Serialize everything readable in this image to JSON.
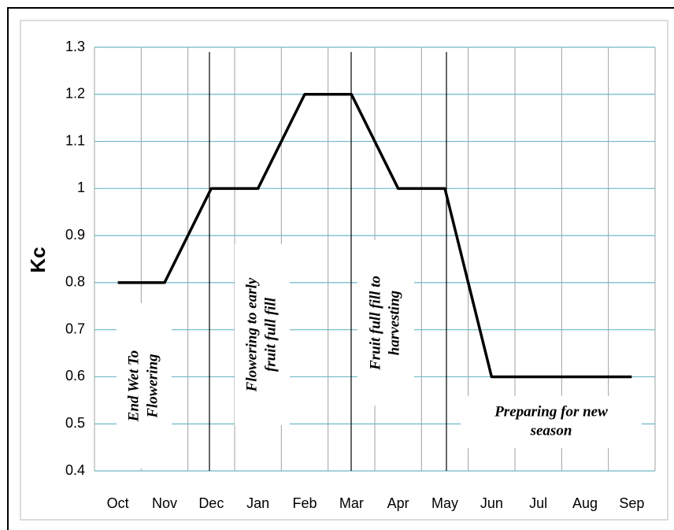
{
  "chart_data": {
    "type": "line",
    "y_label": "Kc",
    "categories": [
      "Oct",
      "Nov",
      "Dec",
      "Jan",
      "Feb",
      "Mar",
      "Apr",
      "May",
      "Jun",
      "Jul",
      "Aug",
      "Sep"
    ],
    "values": [
      0.8,
      0.8,
      1.0,
      1.0,
      1.2,
      1.2,
      1.0,
      1.0,
      0.6,
      0.6,
      0.6,
      0.6
    ],
    "color": "#000000",
    "ylim": [
      0.4,
      1.3
    ],
    "yticks": [
      0.4,
      0.5,
      0.6,
      0.7,
      0.8,
      0.9,
      1,
      1.1,
      1.2,
      1.3
    ],
    "grid": true,
    "annotations": [
      {
        "lines": [
          "End Wet To",
          "Flowering"
        ]
      },
      {
        "lines": [
          "Flowering to early",
          "fruit full fill"
        ]
      },
      {
        "lines": [
          "Fruit full fill to",
          "harvesting"
        ]
      },
      {
        "lines": [
          "Preparing for new",
          "season"
        ]
      }
    ]
  }
}
